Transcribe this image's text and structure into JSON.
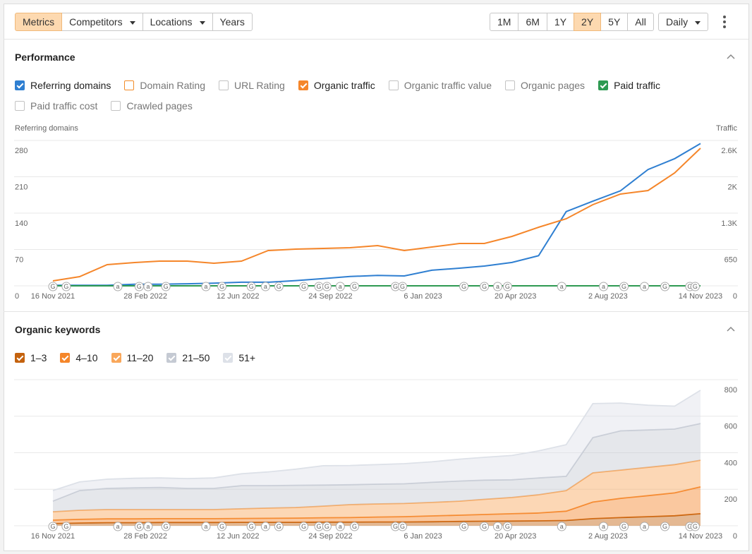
{
  "toolbar": {
    "tabs": [
      {
        "label": "Metrics",
        "active": true
      },
      {
        "label": "Competitors",
        "dropdown": true
      },
      {
        "label": "Locations",
        "dropdown": true
      },
      {
        "label": "Years"
      }
    ],
    "ranges": [
      {
        "label": "1M"
      },
      {
        "label": "6M"
      },
      {
        "label": "1Y"
      },
      {
        "label": "2Y",
        "active": true
      },
      {
        "label": "5Y"
      },
      {
        "label": "All"
      }
    ],
    "interval": {
      "label": "Daily",
      "dropdown": true
    }
  },
  "performance": {
    "title": "Performance"
  },
  "keywords": {
    "title": "Organic keywords"
  },
  "markers": [
    {
      "date": "2021-11-16",
      "label": "G"
    },
    {
      "date": "2021-12-01",
      "label": "G"
    },
    {
      "date": "2022-01-28",
      "label": "a"
    },
    {
      "date": "2022-02-21",
      "label": "G"
    },
    {
      "date": "2022-03-03",
      "label": "a"
    },
    {
      "date": "2022-03-23",
      "label": "G"
    },
    {
      "date": "2022-05-07",
      "label": "a"
    },
    {
      "date": "2022-05-25",
      "label": "G"
    },
    {
      "date": "2022-06-27",
      "label": "G"
    },
    {
      "date": "2022-07-13",
      "label": "a"
    },
    {
      "date": "2022-07-28",
      "label": "G"
    },
    {
      "date": "2022-08-25",
      "label": "G"
    },
    {
      "date": "2022-09-11",
      "label": "G"
    },
    {
      "date": "2022-09-20",
      "label": "G"
    },
    {
      "date": "2022-10-05",
      "label": "a"
    },
    {
      "date": "2022-10-21",
      "label": "G"
    },
    {
      "date": "2022-12-06",
      "label": "G"
    },
    {
      "date": "2022-12-14",
      "label": "G"
    },
    {
      "date": "2023-02-21",
      "label": "G"
    },
    {
      "date": "2023-03-16",
      "label": "G"
    },
    {
      "date": "2023-03-31",
      "label": "a"
    },
    {
      "date": "2023-04-11",
      "label": "G"
    },
    {
      "date": "2023-06-11",
      "label": "a"
    },
    {
      "date": "2023-07-28",
      "label": "a"
    },
    {
      "date": "2023-08-20",
      "label": "G"
    },
    {
      "date": "2023-09-12",
      "label": "a"
    },
    {
      "date": "2023-10-05",
      "label": "G"
    },
    {
      "date": "2023-11-02",
      "label": "G"
    },
    {
      "date": "2023-11-08",
      "label": "G"
    }
  ],
  "chart_data": [
    {
      "type": "line",
      "ylabel": "Referring domains",
      "y2label": "Traffic",
      "x": [
        "2021-11-16",
        "2021-12-16",
        "2022-01-16",
        "2022-02-16",
        "2022-03-16",
        "2022-04-16",
        "2022-05-16",
        "2022-06-16",
        "2022-07-16",
        "2022-08-16",
        "2022-09-16",
        "2022-10-16",
        "2022-11-16",
        "2022-12-16",
        "2023-01-16",
        "2023-02-16",
        "2023-03-16",
        "2023-04-16",
        "2023-05-16",
        "2023-06-16",
        "2023-07-16",
        "2023-08-16",
        "2023-09-16",
        "2023-10-16",
        "2023-11-14"
      ],
      "xlim": [
        "2021-11-16",
        "2023-11-14"
      ],
      "xticks": [
        {
          "value": "2021-11-16",
          "label": "16 Nov 2021"
        },
        {
          "value": "2022-02-28",
          "label": "28 Feb 2022"
        },
        {
          "value": "2022-06-12",
          "label": "12 Jun 2022"
        },
        {
          "value": "2022-09-24",
          "label": "24 Sep 2022"
        },
        {
          "value": "2023-01-06",
          "label": "6 Jan 2023"
        },
        {
          "value": "2023-04-20",
          "label": "20 Apr 2023"
        },
        {
          "value": "2023-08-02",
          "label": "2 Aug 2023"
        },
        {
          "value": "2023-11-14",
          "label": "14 Nov 2023"
        }
      ],
      "ylim": [
        0,
        280
      ],
      "yticks": [
        0,
        70,
        140,
        210,
        280
      ],
      "y2lim": [
        0,
        2600
      ],
      "y2ticks": [
        0,
        650,
        {
          "value": 1300,
          "label": "1.3K"
        },
        {
          "value": 1950,
          "label": "2K"
        },
        {
          "value": 2600,
          "label": "2.6K"
        }
      ],
      "grid": true,
      "series": [
        {
          "name": "Referring domains",
          "color": "#2f7fd1",
          "checked": true,
          "values": [
            1,
            1,
            1,
            3,
            3,
            4,
            5,
            7,
            7,
            10,
            14,
            18,
            20,
            19,
            30,
            34,
            38,
            45,
            58,
            143,
            163,
            183,
            224,
            245,
            274
          ]
        },
        {
          "name": "Domain Rating",
          "color": "#f28c28",
          "checked": false
        },
        {
          "name": "URL Rating",
          "color": "#c3c3c3",
          "checked": false
        },
        {
          "name": "Organic traffic",
          "color": "#f5862a",
          "checked": true,
          "axis": "y2",
          "values": [
            88,
            164,
            379,
            416,
            442,
            442,
            404,
            442,
            631,
            656,
            669,
            682,
            719,
            631,
            694,
            757,
            757,
            883,
            1047,
            1199,
            1451,
            1641,
            1704,
            2019,
            2461
          ]
        },
        {
          "name": "Organic traffic value",
          "color": "#c3c3c3",
          "checked": false
        },
        {
          "name": "Organic pages",
          "color": "#c3c3c3",
          "checked": false
        },
        {
          "name": "Paid traffic",
          "color": "#2e9a52",
          "checked": true,
          "axis": "y2",
          "values": [
            0,
            0,
            0,
            0,
            0,
            0,
            0,
            0,
            0,
            0,
            0,
            0,
            0,
            0,
            0,
            0,
            0,
            0,
            0,
            0,
            0,
            0,
            0,
            0,
            0
          ]
        },
        {
          "name": "Paid traffic cost",
          "color": "#c3c3c3",
          "checked": false
        },
        {
          "name": "Crawled pages",
          "color": "#c3c3c3",
          "checked": false
        }
      ]
    },
    {
      "type": "area",
      "stacked": true,
      "x": [
        "2021-11-16",
        "2021-12-16",
        "2022-01-16",
        "2022-02-16",
        "2022-03-16",
        "2022-04-16",
        "2022-05-16",
        "2022-06-16",
        "2022-07-16",
        "2022-08-16",
        "2022-09-16",
        "2022-10-16",
        "2022-11-16",
        "2022-12-16",
        "2023-01-16",
        "2023-02-16",
        "2023-03-16",
        "2023-04-16",
        "2023-05-16",
        "2023-06-16",
        "2023-07-16",
        "2023-08-16",
        "2023-09-16",
        "2023-10-16",
        "2023-11-14"
      ],
      "xlim": [
        "2021-11-16",
        "2023-11-14"
      ],
      "xticks": [
        {
          "value": "2021-11-16",
          "label": "16 Nov 2021"
        },
        {
          "value": "2022-02-28",
          "label": "28 Feb 2022"
        },
        {
          "value": "2022-06-12",
          "label": "12 Jun 2022"
        },
        {
          "value": "2022-09-24",
          "label": "24 Sep 2022"
        },
        {
          "value": "2023-01-06",
          "label": "6 Jan 2023"
        },
        {
          "value": "2023-04-20",
          "label": "20 Apr 2023"
        },
        {
          "value": "2023-08-02",
          "label": "2 Aug 2023"
        },
        {
          "value": "2023-11-14",
          "label": "14 Nov 2023"
        }
      ],
      "ylim": [
        0,
        800
      ],
      "yticks": [
        0,
        200,
        400,
        600,
        800
      ],
      "grid": true,
      "series": [
        {
          "name": "1–3",
          "color": "#c4620e",
          "checked": true,
          "values": [
            12,
            15,
            17,
            17,
            18,
            18,
            18,
            19,
            19,
            19,
            20,
            20,
            21,
            21,
            22,
            24,
            25,
            26,
            27,
            29,
            39,
            45,
            50,
            55,
            66
          ]
        },
        {
          "name": "4–10",
          "color": "#f5862a",
          "checked": true,
          "values": [
            19,
            20,
            21,
            21,
            21,
            21,
            21,
            21,
            22,
            23,
            24,
            25,
            27,
            29,
            32,
            34,
            37,
            40,
            43,
            51,
            91,
            105,
            115,
            125,
            147
          ]
        },
        {
          "name": "11–20",
          "color": "#f9a75a",
          "checked": true,
          "values": [
            46,
            50,
            51,
            51,
            50,
            50,
            50,
            53,
            56,
            58,
            64,
            71,
            72,
            72,
            74,
            77,
            83,
            89,
            100,
            113,
            160,
            155,
            155,
            155,
            146
          ]
        },
        {
          "name": "21–50",
          "color": "#c5cad3",
          "checked": true,
          "values": [
            58,
            108,
            116,
            119,
            121,
            116,
            116,
            127,
            123,
            122,
            115,
            109,
            108,
            108,
            110,
            110,
            105,
            97,
            92,
            78,
            193,
            215,
            205,
            195,
            201
          ]
        },
        {
          "name": "51+",
          "color": "#dde1e8",
          "checked": true,
          "values": [
            58,
            47,
            50,
            52,
            52,
            53,
            57,
            65,
            75,
            88,
            106,
            105,
            107,
            110,
            112,
            120,
            125,
            133,
            148,
            173,
            186,
            152,
            135,
            125,
            182
          ]
        }
      ]
    }
  ]
}
